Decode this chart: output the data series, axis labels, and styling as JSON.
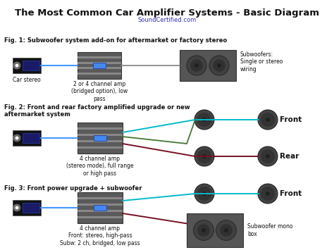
{
  "title": "The Most Common Car Amplifier Systems - Basic Diagram",
  "subtitle": "SoundCertified.com",
  "subtitle_color": "#3333bb",
  "bg_color": "#ffffff",
  "title_fontsize": 9.5,
  "subtitle_fontsize": 6,
  "fig1_label": "Fig. 1: Subwoofer system add-on for aftermarket or factory stereo",
  "fig2_label": "Fig. 2: Front and rear factory amplified upgrade or new\naftermarket system",
  "fig3_label": "Fig. 3: Front power upgrade + subwoofer",
  "car_stereo_label": "Car stereo",
  "amp1_label": "2 or 4 channel amp\n(bridged option), low\npass",
  "amp2_label": "4 channel amp\n(stereo mode), full range\nor high pass",
  "amp3_label": "4 channel amp\nFront: stereo, high-pass\nSubw: 2 ch, bridged, low pass",
  "sub1_label": "Subwoofers:\nSingle or stereo\nwiring",
  "front_label": "Front",
  "rear_label": "Rear",
  "front3_label": "Front",
  "sub3_label": "Subwoofer mono\nbox",
  "amp_body_color": "#5a5a5a",
  "amp_stripe_light": "#888888",
  "amp_stripe_dark": "#444444",
  "amp_led_color": "#4488ee",
  "stereo_body_color": "#1a1a66",
  "stereo_bg_color": "#111111",
  "stereo_knob_color": "#888888",
  "wire_blue": "#4499ff",
  "wire_cyan": "#00bbcc",
  "wire_dark_red": "#771122",
  "wire_green": "#447733",
  "wire_gray": "#888888",
  "speaker_outer": "#444444",
  "speaker_rim": "#555555",
  "speaker_cone": "#333333",
  "speaker_center": "#222222",
  "box_color": "#555555",
  "box_edge": "#333333",
  "label_fontsize": 5.5,
  "fig_label_fontsize": 6.0
}
